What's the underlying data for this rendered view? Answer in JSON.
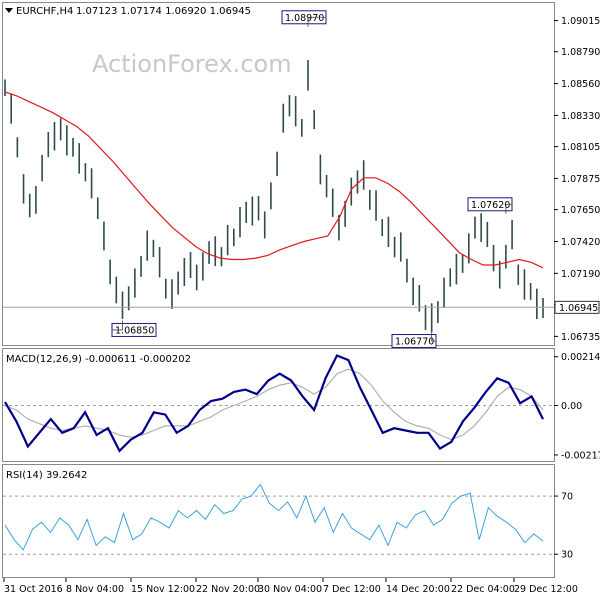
{
  "header": {
    "symbol": "EURCHF,H4",
    "ohlc": "1.07123 1.07174 1.06920 1.06945",
    "watermark": "ActionForex.com"
  },
  "macd_label": "MACD(12,26,9) -0.000611 -0.000202",
  "rsi_label": "RSI(14) 39.2642",
  "colors": {
    "candle": "#2e4a4a",
    "ma": "#e0191e",
    "macd": "#00008b",
    "signal": "#b0b0b0",
    "rsi": "#3aa3dc",
    "hline": "#a0a0a0"
  },
  "chart_data": [
    {
      "type": "line",
      "panel": "price",
      "yaxis": {
        "ticks": [
          "1.09015",
          "1.08790",
          "1.08560",
          "1.08330",
          "1.08105",
          "1.07875",
          "1.07650",
          "1.07420",
          "1.07190",
          "1.06965",
          "1.06735"
        ],
        "range": [
          1.0668,
          1.0912
        ]
      },
      "x_labels": [
        "31 Oct 2016",
        "8 Nov 04:00",
        "15 Nov 12:00",
        "22 Nov 20:00",
        "30 Nov 04:00",
        "7 Dec 12:00",
        "14 Dec 20:00",
        "22 Dec 04:00",
        "29 Dec 12:00"
      ],
      "current_price": "1.06945",
      "annotations": [
        "1.08970",
        "1.06850",
        "1.06770",
        "1.07620"
      ],
      "series": [
        {
          "values": [
            1.0853,
            1.0838,
            1.081,
            1.078,
            1.0768,
            1.0772,
            1.0795,
            1.0812,
            1.0818,
            1.0823,
            1.0815,
            1.081,
            1.0802,
            1.0792,
            1.0784,
            1.0766,
            1.0746,
            1.072,
            1.0707,
            1.0696,
            1.0701,
            1.0712,
            1.0724,
            1.0739,
            1.0737,
            1.0727,
            1.0708,
            1.0704,
            1.0712,
            1.072,
            1.0725,
            1.0716,
            1.0724,
            1.0734,
            1.0735,
            1.0731,
            1.0743,
            1.0745,
            1.0756,
            1.0763,
            1.0764,
            1.0766,
            1.0754,
            1.0775,
            1.0798,
            1.0831,
            1.084,
            1.0836,
            1.0824,
            1.0862,
            1.083,
            1.0794,
            1.0782,
            1.077,
            1.0752,
            1.0762,
            1.0778,
            1.0785,
            1.079,
            1.0772,
            1.0768,
            1.0752,
            1.0749,
            1.0738,
            1.0738,
            1.0721,
            1.0706,
            1.0701,
            1.0687,
            1.0687,
            1.0691,
            1.0705,
            1.0716,
            1.0722,
            1.0726,
            1.0737,
            1.0752,
            1.0752,
            1.0747,
            1.073,
            1.0718,
            1.0731,
            1.0747,
            1.0718,
            1.0711,
            1.0706,
            1.0697,
            1.0694
          ]
        },
        {
          "name": "MA",
          "values": [
            1.085,
            1.0847,
            1.0843,
            1.0839,
            1.0835,
            1.083,
            1.0825,
            1.0818,
            1.0809,
            1.08,
            1.079,
            1.078,
            1.077,
            1.0761,
            1.0752,
            1.0745,
            1.0738,
            1.0733,
            1.073,
            1.0729,
            1.0729,
            1.073,
            1.0732,
            1.0736,
            1.0739,
            1.0742,
            1.0744,
            1.0746,
            1.076,
            1.078,
            1.0788,
            1.0788,
            1.0784,
            1.0778,
            1.077,
            1.0761,
            1.0752,
            1.0743,
            1.0734,
            1.0729,
            1.0725,
            1.0725,
            1.0727,
            1.0729,
            1.0727,
            1.0723
          ]
        }
      ]
    },
    {
      "type": "line",
      "panel": "macd",
      "title": "MACD(12,26,9) -0.000611 -0.000202",
      "yaxis": {
        "ticks": [
          "0.002148",
          "0.00",
          "-0.002178"
        ],
        "range": [
          -0.0024,
          0.0024
        ]
      },
      "series": [
        {
          "name": "MACD",
          "values": [
            0.00015,
            -0.0007,
            -0.0018,
            -0.0012,
            -0.0006,
            -0.0012,
            -0.001,
            -0.0003,
            -0.0013,
            -0.001,
            -0.002,
            -0.0015,
            -0.0012,
            -0.0003,
            -0.0004,
            -0.0012,
            -0.0009,
            -0.0002,
            0.0002,
            0.0003,
            0.0006,
            0.0007,
            0.0005,
            0.0011,
            0.0014,
            0.0011,
            0.0004,
            -0.0002,
            0.0012,
            0.0022,
            0.002,
            0.0008,
            -0.0002,
            -0.0012,
            -0.001,
            -0.0011,
            -0.0012,
            -0.0012,
            -0.0019,
            -0.0016,
            -0.0007,
            -0.0001,
            0.0006,
            0.0012,
            0.001,
            0.0001,
            0.0004,
            -0.0006
          ]
        },
        {
          "name": "Signal",
          "values": [
            0.0,
            -0.0002,
            -0.0006,
            -0.0008,
            -0.001,
            -0.0011,
            -0.001,
            -0.0009,
            -0.001,
            -0.0011,
            -0.0013,
            -0.0014,
            -0.0013,
            -0.0011,
            -0.0009,
            -0.0009,
            -0.0009,
            -0.0007,
            -0.0005,
            -0.0002,
            0.0,
            0.0002,
            0.0004,
            0.0007,
            0.0009,
            0.001,
            0.0008,
            0.0005,
            0.0008,
            0.0014,
            0.0016,
            0.0014,
            0.0009,
            0.0002,
            -0.0003,
            -0.0007,
            -0.0009,
            -0.001,
            -0.0013,
            -0.0015,
            -0.0013,
            -0.0009,
            -0.0003,
            0.0004,
            0.0008,
            0.0007,
            0.0004,
            -0.0002
          ]
        }
      ]
    },
    {
      "type": "line",
      "panel": "rsi",
      "title": "RSI(14) 39.2642",
      "yaxis": {
        "ticks": [
          "70",
          "30"
        ],
        "range": [
          15,
          90
        ],
        "levels": [
          70,
          30
        ]
      },
      "series": [
        {
          "name": "RSI",
          "values": [
            50,
            40,
            33,
            47,
            52,
            45,
            55,
            50,
            40,
            54,
            36,
            42,
            38,
            58,
            40,
            44,
            55,
            52,
            48,
            60,
            55,
            60,
            54,
            64,
            58,
            60,
            68,
            70,
            78,
            65,
            60,
            66,
            55,
            70,
            52,
            62,
            45,
            58,
            48,
            44,
            40,
            50,
            36,
            52,
            48,
            57,
            60,
            50,
            54,
            65,
            70,
            72,
            40,
            62,
            56,
            52,
            47,
            38,
            44,
            39
          ]
        }
      ]
    }
  ]
}
